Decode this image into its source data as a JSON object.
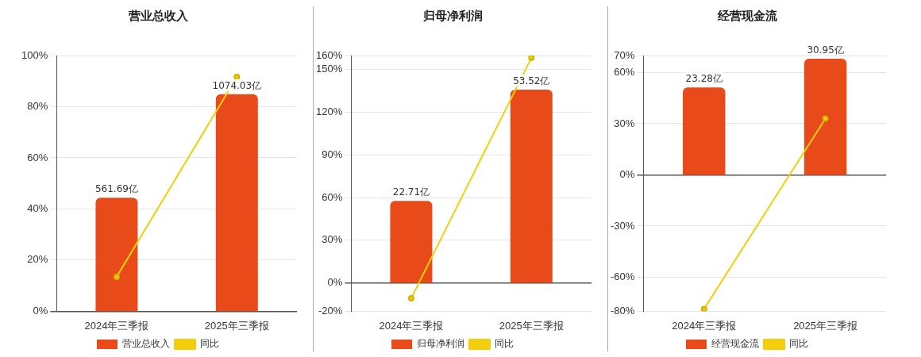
{
  "chart_data": [
    {
      "type": "bar",
      "title": "营业总收入",
      "categories": [
        "2024年三季报",
        "2025年三季报"
      ],
      "series": [
        {
          "name": "营业总收入",
          "axis": "y2",
          "color": "#e84a1a",
          "values": [
            561.69,
            1074.03
          ],
          "value_labels": [
            "561.69亿",
            "1074.03亿"
          ]
        },
        {
          "name": "同比",
          "type": "line",
          "color": "#f2cf0a",
          "values": [
            13.5,
            91.6
          ]
        }
      ],
      "ylim": [
        0,
        100
      ],
      "yticks": [
        {
          "value": 0,
          "label": "0%"
        },
        {
          "value": 20,
          "label": "20%"
        },
        {
          "value": 40,
          "label": "40%"
        },
        {
          "value": 60,
          "label": "60%"
        },
        {
          "value": 80,
          "label": "80%"
        },
        {
          "value": 100,
          "label": "100%"
        }
      ],
      "y2lim": [
        0,
        1265
      ],
      "grid": "y",
      "legend": "bottom",
      "marker": "circle"
    },
    {
      "type": "bar",
      "title": "归母净利润",
      "categories": [
        "2024年三季报",
        "2025年三季报"
      ],
      "series": [
        {
          "name": "归母净利润",
          "axis": "y2",
          "color": "#e84a1a",
          "values": [
            22.71,
            53.52
          ],
          "value_labels": [
            "22.71亿",
            "53.52亿"
          ]
        },
        {
          "name": "同比",
          "type": "line",
          "color": "#f2cf0a",
          "values": [
            -10.8,
            158.4
          ]
        }
      ],
      "ylim": [
        -20,
        160
      ],
      "yticks": [
        {
          "value": -20,
          "label": "-20%"
        },
        {
          "value": 0,
          "label": "0%"
        },
        {
          "value": 30,
          "label": "30%"
        },
        {
          "value": 60,
          "label": "60%"
        },
        {
          "value": 90,
          "label": "90%"
        },
        {
          "value": 120,
          "label": "120%"
        },
        {
          "value": 150,
          "label": "150%"
        },
        {
          "value": 160,
          "label": "160%"
        }
      ],
      "y2lim": [
        -7.87,
        62.97
      ],
      "grid": "y",
      "legend": "bottom",
      "marker": "circle"
    },
    {
      "type": "bar",
      "title": "经营现金流",
      "categories": [
        "2024年三季报",
        "2025年三季报"
      ],
      "series": [
        {
          "name": "经营现金流",
          "axis": "y2",
          "color": "#e84a1a",
          "values": [
            23.28,
            30.95
          ],
          "value_labels": [
            "23.28亿",
            "30.95亿"
          ]
        },
        {
          "name": "同比",
          "type": "line",
          "color": "#f2cf0a",
          "values": [
            -78.6,
            33
          ]
        }
      ],
      "ylim": [
        -80,
        70
      ],
      "yticks": [
        {
          "value": -80,
          "label": "-80%"
        },
        {
          "value": -60,
          "label": "-60%"
        },
        {
          "value": -30,
          "label": "-30%"
        },
        {
          "value": 0,
          "label": "0%"
        },
        {
          "value": 30,
          "label": "30%"
        },
        {
          "value": 60,
          "label": "60%"
        },
        {
          "value": 70,
          "label": "70%"
        }
      ],
      "y2lim": [
        -36.3,
        31.77
      ],
      "grid": "y",
      "legend": "bottom",
      "marker": "circle"
    }
  ]
}
